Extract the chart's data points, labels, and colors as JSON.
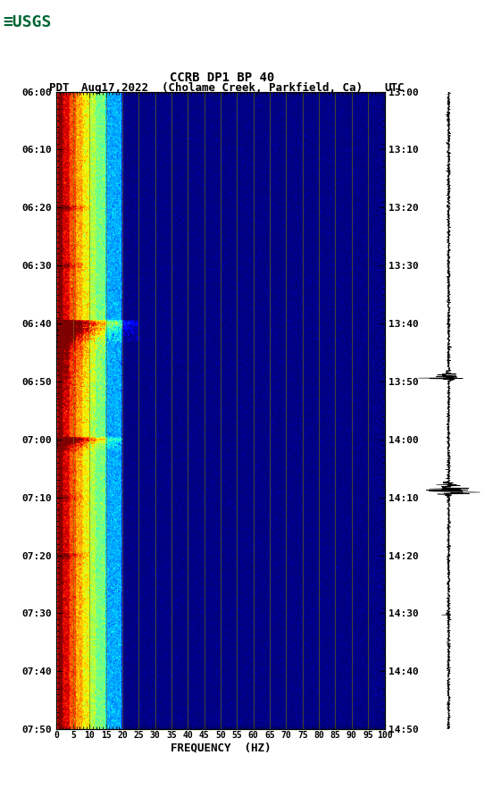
{
  "title_line1": "CCRB DP1 BP 40",
  "title_line2_left": "PDT",
  "title_line2_mid": "Aug17,2022  (Cholame Creek, Parkfield, Ca)",
  "title_line2_right": "UTC",
  "xlabel": "FREQUENCY  (HZ)",
  "freq_min": 0,
  "freq_max": 100,
  "freq_ticks": [
    0,
    5,
    10,
    15,
    20,
    25,
    30,
    35,
    40,
    45,
    50,
    55,
    60,
    65,
    70,
    75,
    80,
    85,
    90,
    95,
    100
  ],
  "left_time_labels": [
    "06:00",
    "06:10",
    "06:20",
    "06:30",
    "06:40",
    "06:50",
    "07:00",
    "07:10",
    "07:20",
    "07:30",
    "07:40",
    "07:50"
  ],
  "right_time_labels": [
    "13:00",
    "13:10",
    "13:20",
    "13:30",
    "13:40",
    "13:50",
    "14:00",
    "14:10",
    "14:20",
    "14:30",
    "14:40",
    "14:50"
  ],
  "background_color": "#ffffff",
  "fig_width": 5.52,
  "fig_height": 8.92,
  "dpi": 100
}
